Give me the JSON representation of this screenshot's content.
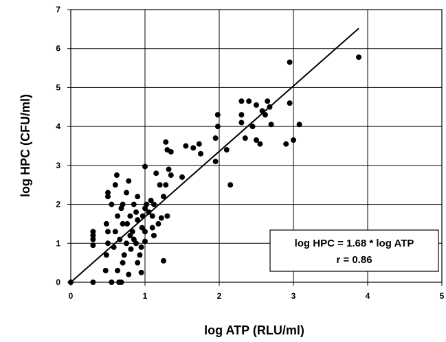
{
  "chart_data": {
    "type": "scatter",
    "title": "",
    "xlabel": "log ATP (RLU/ml)",
    "ylabel": "log HPC (CFU/ml)",
    "xlim": [
      0,
      5
    ],
    "ylim": [
      0,
      7
    ],
    "x_ticks": [
      "0",
      "1",
      "2",
      "3",
      "4",
      "5"
    ],
    "y_ticks": [
      "0",
      "1",
      "2",
      "3",
      "4",
      "5",
      "6",
      "7"
    ],
    "grid": true,
    "legend": "none",
    "point_color": "#000000",
    "annotation": {
      "line1": "log HPC = 1.68 * log ATP",
      "line2": "r = 0.86"
    },
    "fit_line": {
      "slope": 1.68,
      "intercept": 0,
      "x_range": [
        0,
        3.88
      ]
    },
    "points": [
      [
        0.0,
        0.0
      ],
      [
        0.3,
        1.3
      ],
      [
        0.3,
        1.2
      ],
      [
        0.3,
        1.1
      ],
      [
        0.3,
        0.95
      ],
      [
        0.3,
        0.0
      ],
      [
        0.47,
        0.3
      ],
      [
        0.48,
        0.7
      ],
      [
        0.5,
        1.0
      ],
      [
        0.5,
        1.3
      ],
      [
        0.48,
        1.5
      ],
      [
        0.5,
        2.2
      ],
      [
        0.5,
        2.3
      ],
      [
        0.55,
        0.0
      ],
      [
        0.55,
        2.0
      ],
      [
        0.58,
        0.9
      ],
      [
        0.6,
        1.3
      ],
      [
        0.6,
        2.5
      ],
      [
        0.62,
        2.75
      ],
      [
        0.63,
        0.3
      ],
      [
        0.63,
        1.7
      ],
      [
        0.65,
        0.0
      ],
      [
        0.66,
        1.1
      ],
      [
        0.68,
        1.9
      ],
      [
        0.68,
        0.0
      ],
      [
        0.7,
        0.5
      ],
      [
        0.7,
        1.5
      ],
      [
        0.7,
        2.0
      ],
      [
        0.72,
        0.7
      ],
      [
        0.75,
        1.0
      ],
      [
        0.75,
        2.3
      ],
      [
        0.76,
        1.5
      ],
      [
        0.78,
        2.6
      ],
      [
        0.78,
        0.2
      ],
      [
        0.8,
        1.2
      ],
      [
        0.8,
        1.7
      ],
      [
        0.81,
        0.85
      ],
      [
        0.83,
        1.3
      ],
      [
        0.85,
        2.0
      ],
      [
        0.85,
        1.1
      ],
      [
        0.88,
        1.0
      ],
      [
        0.88,
        1.8
      ],
      [
        0.9,
        0.5
      ],
      [
        0.9,
        1.6
      ],
      [
        0.9,
        2.2
      ],
      [
        0.93,
        0.7
      ],
      [
        0.95,
        0.9
      ],
      [
        0.95,
        0.25
      ],
      [
        0.96,
        1.4
      ],
      [
        0.97,
        1.7
      ],
      [
        1.0,
        1.9
      ],
      [
        1.0,
        2.97
      ],
      [
        1.0,
        1.3
      ],
      [
        1.0,
        1.05
      ],
      [
        1.02,
        2.0
      ],
      [
        1.05,
        1.8
      ],
      [
        1.08,
        2.1
      ],
      [
        1.1,
        1.4
      ],
      [
        1.1,
        1.7
      ],
      [
        1.12,
        2.0
      ],
      [
        1.12,
        1.2
      ],
      [
        1.15,
        2.8
      ],
      [
        1.18,
        1.5
      ],
      [
        1.2,
        2.5
      ],
      [
        1.22,
        1.65
      ],
      [
        1.25,
        0.55
      ],
      [
        1.25,
        2.2
      ],
      [
        1.28,
        2.5
      ],
      [
        1.28,
        3.6
      ],
      [
        1.3,
        3.4
      ],
      [
        1.3,
        1.7
      ],
      [
        1.32,
        2.9
      ],
      [
        1.35,
        2.75
      ],
      [
        1.35,
        3.35
      ],
      [
        1.5,
        2.7
      ],
      [
        1.55,
        3.5
      ],
      [
        1.65,
        3.45
      ],
      [
        1.73,
        3.55
      ],
      [
        1.75,
        3.3
      ],
      [
        1.95,
        3.1
      ],
      [
        1.95,
        3.7
      ],
      [
        1.98,
        4.0
      ],
      [
        1.98,
        4.3
      ],
      [
        2.1,
        3.4
      ],
      [
        2.15,
        2.5
      ],
      [
        2.3,
        4.1
      ],
      [
        2.3,
        4.65
      ],
      [
        2.3,
        4.3
      ],
      [
        2.35,
        3.7
      ],
      [
        2.4,
        4.65
      ],
      [
        2.45,
        4.0
      ],
      [
        2.5,
        3.65
      ],
      [
        2.5,
        4.55
      ],
      [
        2.55,
        3.55
      ],
      [
        2.58,
        4.4
      ],
      [
        2.62,
        4.3
      ],
      [
        2.65,
        4.65
      ],
      [
        2.68,
        4.5
      ],
      [
        2.7,
        4.05
      ],
      [
        2.9,
        3.55
      ],
      [
        2.95,
        4.6
      ],
      [
        2.95,
        5.65
      ],
      [
        3.0,
        3.65
      ],
      [
        3.08,
        4.05
      ],
      [
        3.88,
        5.78
      ]
    ]
  }
}
